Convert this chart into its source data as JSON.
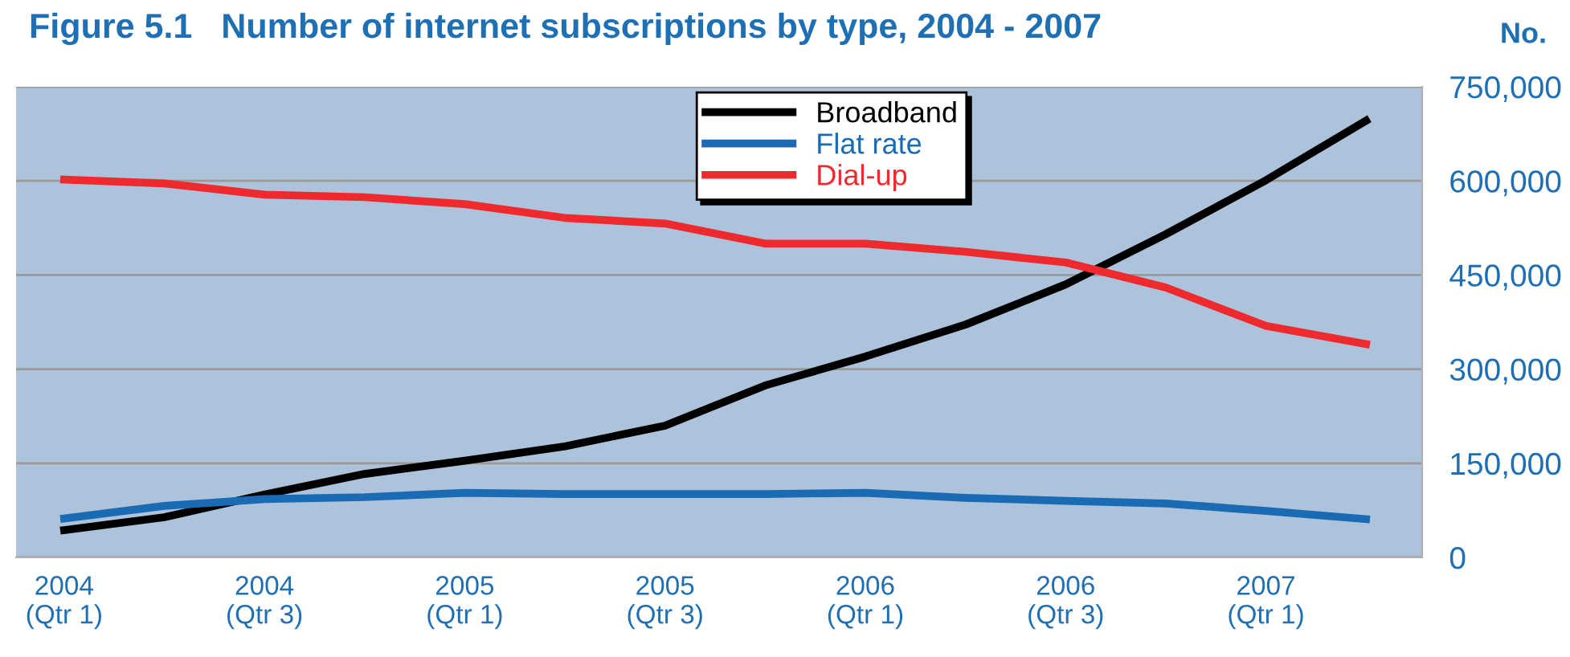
{
  "chart_data": {
    "type": "line",
    "title": "Figure 5.1   Number of internet subscriptions by type, 2004 - 2007",
    "ylabel": "No.",
    "categories": [
      "2004\n(Qtr 1)",
      null,
      "2004\n(Qtr 3)",
      null,
      "2005\n(Qtr 1)",
      null,
      "2005\n(Qtr 3)",
      null,
      "2006\n(Qtr 1)",
      null,
      "2006\n(Qtr 3)",
      null,
      "2007\n(Qtr 1)",
      null
    ],
    "series": [
      {
        "name": "Broadband",
        "color": "#000000",
        "values": [
          43500,
          64000,
          100000,
          133000,
          154000,
          177000,
          210000,
          274000,
          320000,
          371000,
          435000,
          515000,
          601000,
          696000
        ]
      },
      {
        "name": "Flat rate",
        "color": "#1a6bb3",
        "values": [
          62000,
          82000,
          93000,
          96000,
          103000,
          101000,
          101000,
          101000,
          103000,
          95000,
          90000,
          86000,
          74000,
          61000
        ]
      },
      {
        "name": "Dial-up",
        "color": "#ee2a2f",
        "values": [
          602000,
          596000,
          578000,
          574000,
          563000,
          541000,
          532000,
          500000,
          500000,
          487000,
          470000,
          430000,
          369000,
          340000
        ]
      }
    ],
    "ylim": [
      0,
      750000
    ],
    "yticks": [
      {
        "value": 0,
        "label": "0"
      },
      {
        "value": 150000,
        "label": "150,000"
      },
      {
        "value": 300000,
        "label": "300,000"
      },
      {
        "value": 450000,
        "label": "450,000"
      },
      {
        "value": 600000,
        "label": "600,000"
      },
      {
        "value": 750000,
        "label": "750,000"
      }
    ],
    "grid": "y",
    "legend": "top",
    "marker": "none",
    "line_style": "solid"
  }
}
